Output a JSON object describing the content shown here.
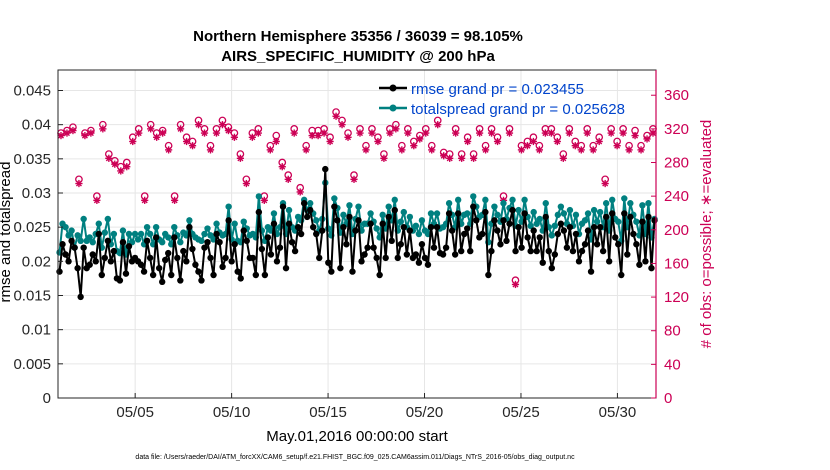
{
  "chart_data": {
    "type": "line",
    "title": "Northern Hemisphere 35356 / 36039 = 98.105%",
    "subtitle": "AIRS_SPECIFIC_HUMIDITY @ 200 hPa",
    "xlabel": "May.01,2016 00:00:00 start",
    "ylabel": "rmse and totalspread",
    "y2label": "# of obs: o=possible; ∗=evaluated",
    "footer": "data file: /Users/raeder/DAI/ATM_forcXX/CAM6_setup/f.e21.FHIST_BGC.f09_025.CAM6assim.011/Diags_NTrS_2016-05/obs_diag_output.nc",
    "xticks": [
      {
        "value": 5,
        "label": "05/05"
      },
      {
        "value": 10,
        "label": "05/10"
      },
      {
        "value": 15,
        "label": "05/15"
      },
      {
        "value": 20,
        "label": "05/20"
      },
      {
        "value": 25,
        "label": "05/25"
      },
      {
        "value": 30,
        "label": "05/30"
      }
    ],
    "xlim": [
      1,
      32
    ],
    "ylim": [
      0,
      0.048
    ],
    "yticks": [
      "0",
      "0.005",
      "0.01",
      "0.015",
      "0.02",
      "0.025",
      "0.03",
      "0.035",
      "0.04",
      "0.045"
    ],
    "y2lim": [
      0,
      390
    ],
    "y2ticks": [
      "0",
      "40",
      "80",
      "120",
      "160",
      "200",
      "240",
      "280",
      "320",
      "360"
    ],
    "grid": true,
    "legend_position": "top-right",
    "colors": {
      "rmse": "#000000",
      "spread": "#008080",
      "obs": "#cc0055",
      "legend_text": "#0044cc",
      "axis": "#262626",
      "grid": "#e6e6e6"
    },
    "series": [
      {
        "name": "rmse grand pr = 0.023455",
        "legend": "rmse grand pr = 0.023455",
        "values": [
          0.0185,
          0.0225,
          0.021,
          0.02,
          0.023,
          0.022,
          0.019,
          0.0148,
          0.022,
          0.019,
          0.0195,
          0.021,
          0.02,
          0.024,
          0.018,
          0.0205,
          0.023,
          0.02,
          0.0215,
          0.0175,
          0.0172,
          0.0228,
          0.0182,
          0.0222,
          0.02,
          0.0205,
          0.02,
          0.0195,
          0.0185,
          0.023,
          0.0205,
          0.018,
          0.0235,
          0.019,
          0.017,
          0.0202,
          0.0212,
          0.018,
          0.0235,
          0.0205,
          0.0172,
          0.0215,
          0.02,
          0.025,
          0.0218,
          0.0195,
          0.0185,
          0.0172,
          0.022,
          0.0228,
          0.0205,
          0.018,
          0.024,
          0.0228,
          0.0192,
          0.0205,
          0.026,
          0.02,
          0.0225,
          0.0185,
          0.0175,
          0.0245,
          0.023,
          0.0205,
          0.0205,
          0.018,
          0.0272,
          0.0218,
          0.018,
          0.0235,
          0.021,
          0.0255,
          0.02,
          0.022,
          0.028,
          0.019,
          0.0255,
          0.0228,
          0.0215,
          0.025,
          0.024,
          0.0285,
          0.0265,
          0.0275,
          0.025,
          0.024,
          0.0205,
          0.0245,
          0.0335,
          0.0198,
          0.0185,
          0.028,
          0.026,
          0.019,
          0.025,
          0.0225,
          0.0265,
          0.0185,
          0.0245,
          0.026,
          0.02,
          0.021,
          0.022,
          0.0255,
          0.022,
          0.0205,
          0.018,
          0.0255,
          0.0205,
          0.0265,
          0.023,
          0.0275,
          0.0205,
          0.0225,
          0.025,
          0.021,
          0.0245,
          0.0205,
          0.021,
          0.0198,
          0.0225,
          0.0205,
          0.0195,
          0.025,
          0.022,
          0.025,
          0.0212,
          0.021,
          0.022,
          0.027,
          0.0245,
          0.021,
          0.027,
          0.0215,
          0.024,
          0.0248,
          0.0215,
          0.028,
          0.026,
          0.0235,
          0.024,
          0.0272,
          0.018,
          0.0215,
          0.026,
          0.0245,
          0.0225,
          0.026,
          0.023,
          0.0255,
          0.0275,
          0.0215,
          0.025,
          0.022,
          0.027,
          0.0235,
          0.0215,
          0.0245,
          0.0215,
          0.0235,
          0.0198,
          0.0265,
          0.0215,
          0.019,
          0.021,
          0.024,
          0.0255,
          0.0245,
          0.022,
          0.025,
          0.0215,
          0.024,
          0.02,
          0.0215,
          0.0225,
          0.0245,
          0.0185,
          0.025,
          0.0225,
          0.025,
          0.0215,
          0.0265,
          0.02,
          0.027,
          0.0235,
          0.0225,
          0.018,
          0.027,
          0.021,
          0.0265,
          0.024,
          0.0225,
          0.0195,
          0.0258,
          0.02,
          0.0265,
          0.019,
          0.026
        ]
      },
      {
        "name": "totalspread grand pr = 0.025628",
        "legend": "totalspread grand pr = 0.025628",
        "values": [
          0.0213,
          0.0255,
          0.025,
          0.0238,
          0.0245,
          0.022,
          0.0238,
          0.023,
          0.0262,
          0.023,
          0.0235,
          0.0228,
          0.024,
          0.0255,
          0.022,
          0.0242,
          0.0262,
          0.0225,
          0.024,
          0.0215,
          0.0212,
          0.0245,
          0.021,
          0.024,
          0.0228,
          0.024,
          0.0232,
          0.024,
          0.0225,
          0.025,
          0.024,
          0.0225,
          0.025,
          0.0232,
          0.0228,
          0.024,
          0.0235,
          0.0225,
          0.025,
          0.0238,
          0.0228,
          0.0242,
          0.0238,
          0.026,
          0.024,
          0.0235,
          0.0232,
          0.023,
          0.024,
          0.0248,
          0.0238,
          0.0232,
          0.0255,
          0.0242,
          0.0238,
          0.024,
          0.028,
          0.0232,
          0.0255,
          0.023,
          0.0228,
          0.0258,
          0.0248,
          0.0238,
          0.024,
          0.0235,
          0.0295,
          0.0245,
          0.023,
          0.025,
          0.0245,
          0.027,
          0.024,
          0.025,
          0.0285,
          0.024,
          0.0275,
          0.025,
          0.0245,
          0.0265,
          0.026,
          0.029,
          0.0275,
          0.0285,
          0.027,
          0.026,
          0.0245,
          0.0262,
          0.0315,
          0.0248,
          0.0238,
          0.0292,
          0.0278,
          0.0242,
          0.0268,
          0.0255,
          0.0282,
          0.024,
          0.0262,
          0.028,
          0.0245,
          0.0255,
          0.0255,
          0.027,
          0.0258,
          0.0248,
          0.0235,
          0.0268,
          0.0248,
          0.028,
          0.026,
          0.029,
          0.0245,
          0.0258,
          0.0272,
          0.025,
          0.0265,
          0.0245,
          0.0252,
          0.024,
          0.026,
          0.0245,
          0.024,
          0.027,
          0.0255,
          0.027,
          0.0248,
          0.025,
          0.0255,
          0.0285,
          0.0268,
          0.025,
          0.029,
          0.0255,
          0.0268,
          0.027,
          0.0255,
          0.0295,
          0.028,
          0.0265,
          0.0268,
          0.029,
          0.0228,
          0.0255,
          0.028,
          0.0268,
          0.0258,
          0.0285,
          0.0262,
          0.0278,
          0.029,
          0.0252,
          0.0275,
          0.0258,
          0.029,
          0.0265,
          0.0252,
          0.0272,
          0.0255,
          0.0262,
          0.0245,
          0.0285,
          0.025,
          0.0238,
          0.0252,
          0.0268,
          0.028,
          0.027,
          0.0255,
          0.0275,
          0.0252,
          0.0268,
          0.024,
          0.0255,
          0.026,
          0.027,
          0.0232,
          0.0275,
          0.0258,
          0.0272,
          0.025,
          0.0285,
          0.0245,
          0.029,
          0.0262,
          0.0258,
          0.023,
          0.0292,
          0.025,
          0.0285,
          0.0268,
          0.0258,
          0.0238,
          0.0282,
          0.024,
          0.0285,
          0.0235,
          0.0262
        ]
      }
    ],
    "obs_possible": [
      315,
      318,
      322,
      260,
      315,
      318,
      240,
      325,
      290,
      282,
      275,
      280,
      310,
      320,
      240,
      325,
      315,
      318,
      300,
      240,
      325,
      310,
      305,
      330,
      320,
      300,
      320,
      330,
      322,
      315,
      290,
      260,
      315,
      320,
      240,
      300,
      312,
      280,
      265,
      320,
      250,
      300,
      318,
      318,
      320,
      310,
      340,
      330,
      315,
      265,
      320,
      300,
      320,
      310,
      290,
      320,
      325,
      300,
      320,
      305,
      312,
      320,
      300,
      330,
      292,
      290,
      320,
      290,
      310,
      290,
      320,
      300,
      320,
      310,
      240,
      320,
      140,
      300,
      305,
      310,
      300,
      320,
      320,
      310,
      290,
      320,
      305,
      300,
      320,
      300,
      310,
      260,
      320,
      305,
      320,
      300,
      318,
      300,
      312,
      320
    ],
    "obs_evaluated": [
      312,
      315,
      318,
      255,
      312,
      315,
      235,
      320,
      285,
      278,
      270,
      275,
      305,
      315,
      235,
      320,
      310,
      315,
      295,
      235,
      320,
      305,
      300,
      325,
      315,
      295,
      315,
      325,
      318,
      310,
      285,
      255,
      310,
      315,
      235,
      295,
      305,
      275,
      260,
      315,
      245,
      295,
      312,
      312,
      315,
      305,
      335,
      325,
      310,
      260,
      315,
      295,
      315,
      305,
      285,
      315,
      320,
      295,
      315,
      300,
      308,
      315,
      295,
      325,
      288,
      285,
      315,
      285,
      305,
      285,
      315,
      295,
      315,
      305,
      235,
      315,
      135,
      295,
      300,
      305,
      295,
      315,
      315,
      305,
      285,
      315,
      300,
      295,
      315,
      295,
      305,
      255,
      315,
      300,
      315,
      295,
      312,
      295,
      308,
      315
    ]
  }
}
